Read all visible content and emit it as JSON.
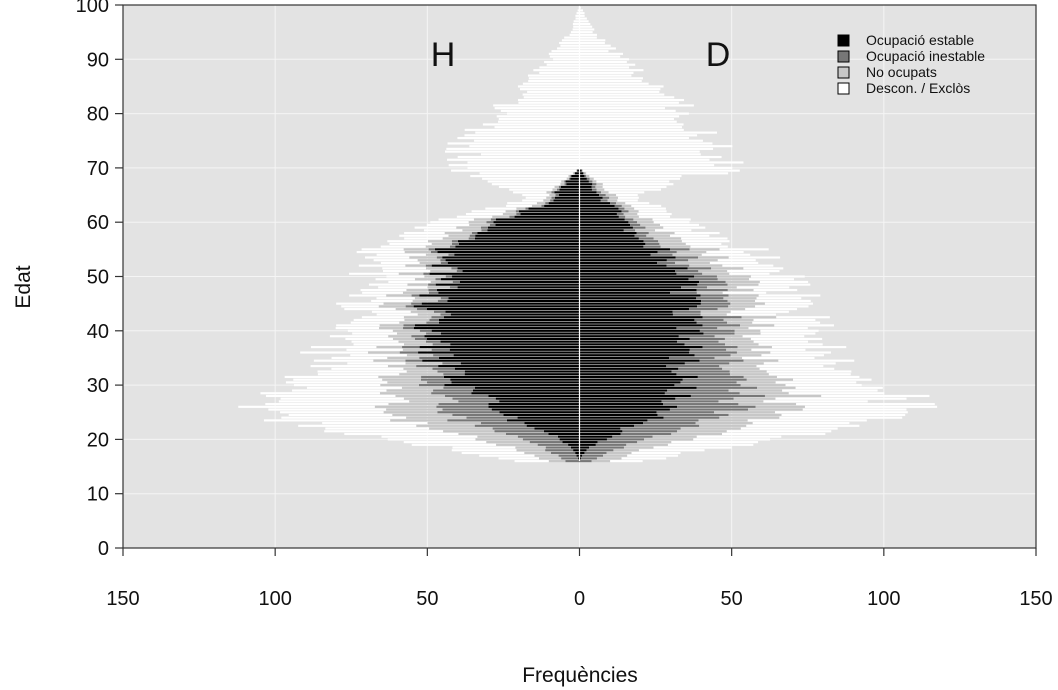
{
  "chart_data": {
    "type": "bar",
    "subtype": "population-pyramid",
    "xlabel": "Frequències",
    "ylabel": "Edat",
    "xlim": [
      -150,
      150
    ],
    "ylim": [
      0,
      100
    ],
    "x_tick_labels": [
      "150",
      "100",
      "50",
      "0",
      "50",
      "100",
      "150"
    ],
    "x_tick_values": [
      -150,
      -100,
      -50,
      0,
      50,
      100,
      150
    ],
    "y_ticks": [
      0,
      10,
      20,
      30,
      40,
      50,
      60,
      70,
      80,
      90,
      100
    ],
    "side_labels": {
      "left": "H",
      "right": "D"
    },
    "legend_position": "top-right",
    "grid": true,
    "colors": {
      "panel": "#e3e3e3",
      "grid": "#f5f5f5",
      "Ocupació estable": "#000000",
      "Ocupació inestable": "#777777",
      "No ocupats": "#c7c7c7",
      "Descon. / Exclòs": "#ffffff"
    },
    "series": [
      {
        "name": "Ocupació estable"
      },
      {
        "name": "Ocupació inestable"
      },
      {
        "name": "No ocupats"
      },
      {
        "name": "Descon. / Exclòs"
      }
    ],
    "y_age_knots": [
      16,
      18,
      20,
      22,
      25,
      28,
      30,
      35,
      40,
      45,
      50,
      55,
      58,
      60,
      62,
      64,
      65,
      70,
      75,
      80,
      85,
      90,
      95,
      100
    ],
    "H_stable_knots": [
      0,
      2,
      6,
      14,
      28,
      34,
      38,
      45,
      47,
      47,
      45,
      42,
      36,
      32,
      18,
      10,
      8,
      0,
      0,
      0,
      0,
      0,
      0,
      0
    ],
    "H_unstable_knots": [
      4,
      8,
      12,
      16,
      18,
      14,
      10,
      6,
      4,
      3,
      2,
      2,
      2,
      2,
      1,
      1,
      1,
      0,
      0,
      0,
      0,
      0,
      0,
      0
    ],
    "H_noocup_knots": [
      6,
      10,
      14,
      18,
      18,
      16,
      14,
      10,
      8,
      8,
      8,
      8,
      8,
      6,
      4,
      2,
      2,
      0,
      0,
      0,
      0,
      0,
      0,
      0
    ],
    "H_descon_knots": [
      12,
      20,
      28,
      38,
      40,
      38,
      30,
      20,
      16,
      14,
      14,
      14,
      14,
      12,
      10,
      8,
      8,
      40,
      38,
      28,
      18,
      10,
      3,
      0
    ],
    "D_stable_knots": [
      0,
      2,
      8,
      16,
      28,
      32,
      33,
      34,
      36,
      36,
      33,
      26,
      18,
      16,
      12,
      8,
      6,
      0,
      0,
      0,
      0,
      0,
      0,
      0
    ],
    "D_unstable_knots": [
      4,
      10,
      14,
      18,
      22,
      22,
      20,
      14,
      12,
      10,
      8,
      6,
      4,
      3,
      2,
      2,
      2,
      0,
      0,
      0,
      0,
      0,
      0,
      0
    ],
    "D_noocup_knots": [
      6,
      10,
      14,
      18,
      18,
      16,
      14,
      10,
      10,
      10,
      10,
      10,
      8,
      6,
      4,
      3,
      3,
      0,
      0,
      0,
      0,
      0,
      0,
      0
    ],
    "D_descon_knots": [
      10,
      20,
      28,
      36,
      40,
      38,
      30,
      22,
      20,
      18,
      16,
      14,
      14,
      12,
      10,
      8,
      8,
      48,
      44,
      36,
      24,
      14,
      5,
      0
    ]
  }
}
